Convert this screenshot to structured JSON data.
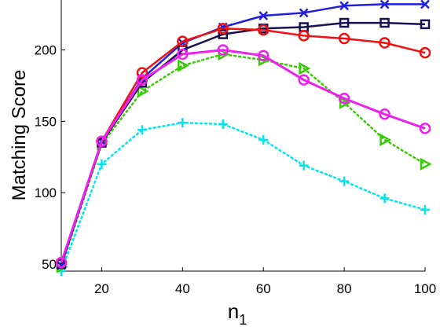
{
  "chart_data": {
    "type": "line",
    "xlabel": "n",
    "xlabel_subscript": "1",
    "ylabel": "Matching Score",
    "xlim": [
      10,
      100
    ],
    "ylim": [
      45,
      235
    ],
    "xticks": [
      20,
      40,
      60,
      80,
      100
    ],
    "yticks": [
      50,
      100,
      150,
      200
    ],
    "grid": false,
    "x": [
      10,
      20,
      30,
      40,
      50,
      60,
      70,
      80,
      90,
      100
    ],
    "series": [
      {
        "color": "#00e5ee",
        "line": "dotted",
        "marker": "plus",
        "width": 2,
        "values": [
          45,
          120,
          144,
          149,
          148,
          137,
          119,
          108,
          96,
          88
        ]
      },
      {
        "color": "#33cc00",
        "line": "dotted",
        "marker": "triangle-right",
        "width": 2,
        "values": [
          48,
          134,
          171,
          189,
          197,
          193,
          187,
          163,
          137,
          120
        ]
      },
      {
        "color": "#1f1fe0",
        "line": "solid",
        "marker": "x",
        "width": 2.5,
        "values": [
          49,
          136,
          180,
          205,
          216,
          224,
          226,
          231,
          232,
          232
        ]
      },
      {
        "color": "#1a1050",
        "line": "solid",
        "marker": "square",
        "width": 2.5,
        "values": [
          50,
          135,
          177,
          200,
          211,
          215,
          216,
          219,
          219,
          218
        ]
      },
      {
        "color": "#ee1111",
        "line": "solid",
        "marker": "circle",
        "width": 2.5,
        "values": [
          51,
          136,
          184,
          206,
          215,
          214,
          210,
          208,
          205,
          198
        ]
      },
      {
        "color": "#ee22ee",
        "line": "solid",
        "marker": "circle",
        "width": 3,
        "values": [
          51,
          136,
          179,
          197,
          200,
          196,
          179,
          166,
          155,
          145
        ]
      }
    ]
  }
}
